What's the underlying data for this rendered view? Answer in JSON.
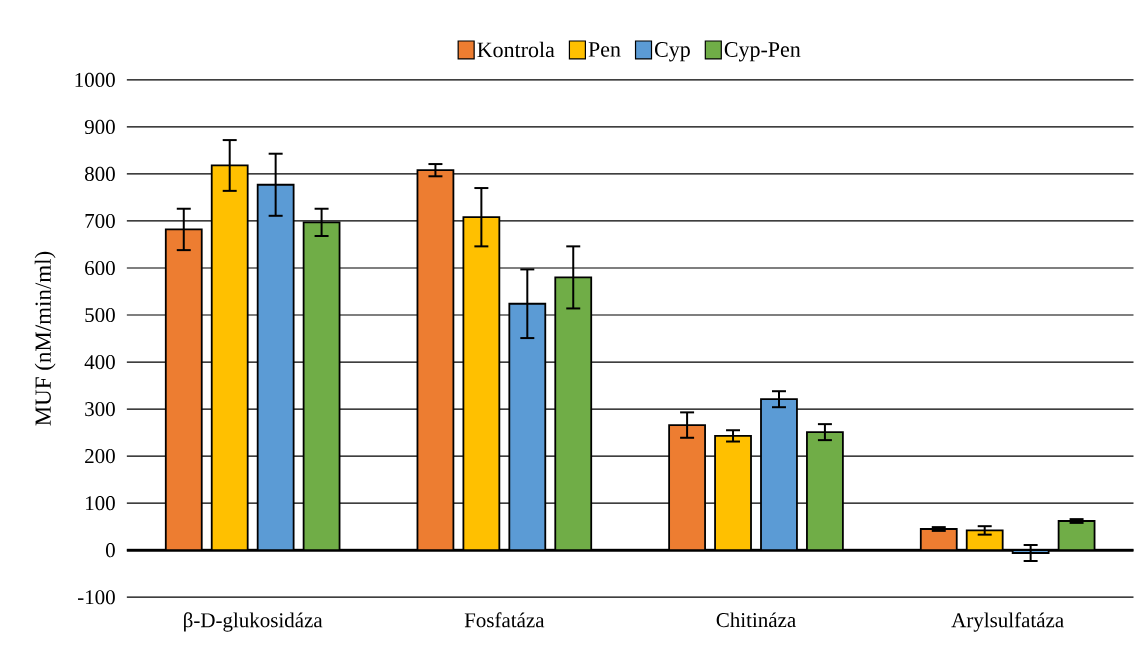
{
  "chart_data": {
    "type": "bar",
    "ylabel": "MUF (nM/min/ml)",
    "categories": [
      "β-D-glukosidáza",
      "Fosfatáza",
      "Chitináza",
      "Arylsulfatáza"
    ],
    "series": [
      {
        "name": "Kontrola",
        "color": "#ed7d31",
        "values": [
          682,
          808,
          266,
          45
        ],
        "errors": [
          44,
          13,
          27,
          4
        ]
      },
      {
        "name": "Pen",
        "color": "#ffc000",
        "values": [
          818,
          708,
          243,
          42
        ],
        "errors": [
          54,
          62,
          12,
          9
        ]
      },
      {
        "name": "Cyp",
        "color": "#5b9bd5",
        "values": [
          777,
          524,
          321,
          -6
        ],
        "errors": [
          66,
          73,
          17,
          17
        ]
      },
      {
        "name": "Cyp-Pen",
        "color": "#70ad47",
        "values": [
          697,
          580,
          251,
          62
        ],
        "errors": [
          29,
          66,
          17,
          4
        ]
      }
    ],
    "ylim": [
      -100,
      1000
    ],
    "yticks": [
      -100,
      0,
      100,
      200,
      300,
      400,
      500,
      600,
      700,
      800,
      900,
      1000
    ],
    "grid": "y",
    "legend": "top"
  }
}
